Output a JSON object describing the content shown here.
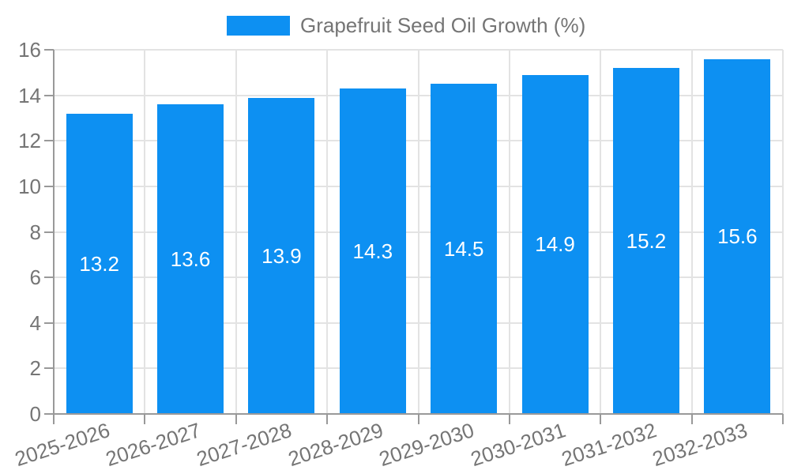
{
  "chart_data": {
    "type": "bar",
    "title": "Grapefruit Seed Oil Growth (%)",
    "legend": {
      "label": "Grapefruit Seed Oil Growth (%)",
      "position": "top-center"
    },
    "categories": [
      "2025-2026",
      "2026-2027",
      "2027-2028",
      "2028-2029",
      "2029-2030",
      "2030-2031",
      "2031-2032",
      "2032-2033"
    ],
    "series": [
      {
        "name": "Grapefruit Seed Oil Growth (%)",
        "values": [
          13.2,
          13.6,
          13.9,
          14.3,
          14.5,
          14.9,
          15.2,
          15.6
        ]
      }
    ],
    "value_labels": [
      "13.2",
      "13.6",
      "13.9",
      "14.3",
      "14.5",
      "14.9",
      "15.2",
      "15.6"
    ],
    "xlabel": "",
    "ylabel": "",
    "ylim": [
      0,
      16
    ],
    "yticks": [
      0,
      2,
      4,
      6,
      8,
      10,
      12,
      14,
      16
    ],
    "grid": true,
    "x_label_rotation_deg": -18,
    "colors": {
      "bar": "#0D90F2",
      "grid_line": "#E3E3E3",
      "axis_line": "#999999",
      "tick_text": "#757575",
      "legend_text": "#757575",
      "value_label_text": "#FFFFFF",
      "background": "#FFFFFF"
    }
  }
}
